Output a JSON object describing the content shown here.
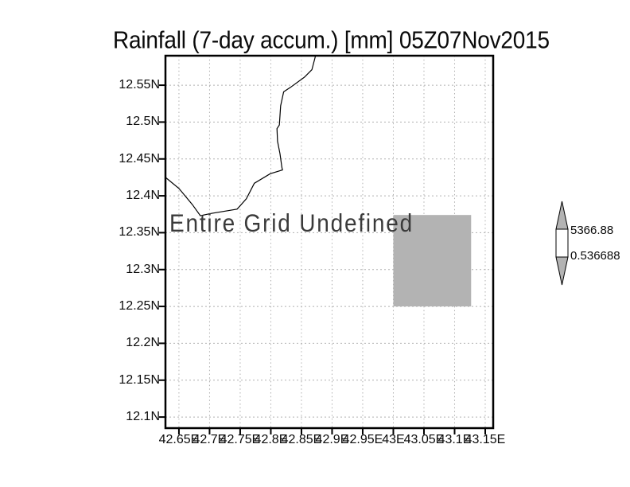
{
  "chart_data": {
    "type": "map",
    "title": "Rainfall (7-day accum.) [mm] 05Z07Nov2015",
    "undefined_label": "Entire Grid Undefined",
    "x_axis": {
      "tick_labels": [
        "42.65E",
        "42.7E",
        "42.75E",
        "42.8E",
        "42.85E",
        "42.9E",
        "42.95E",
        "43E",
        "43.05E",
        "43.1E",
        "43.15E"
      ],
      "tick_values": [
        42.65,
        42.7,
        42.75,
        42.8,
        42.85,
        42.9,
        42.95,
        43.0,
        43.05,
        43.1,
        43.15
      ],
      "range": [
        42.628,
        43.163
      ]
    },
    "y_axis": {
      "tick_labels": [
        "12.55N",
        "12.5N",
        "12.45N",
        "12.4N",
        "12.35N",
        "12.3N",
        "12.25N",
        "12.2N",
        "12.15N",
        "12.1N"
      ],
      "tick_values": [
        12.55,
        12.5,
        12.45,
        12.4,
        12.35,
        12.3,
        12.25,
        12.2,
        12.15,
        12.1
      ],
      "range": [
        12.085,
        12.59
      ]
    },
    "grid": {
      "visible": true,
      "style": "dotted",
      "color": "#b0b0b0"
    },
    "frame_color": "#000000",
    "coastline_color": "#000000",
    "coastline": [
      [
        42.873,
        12.59
      ],
      [
        42.867,
        12.571
      ],
      [
        42.855,
        12.561
      ],
      [
        42.832,
        12.547
      ],
      [
        42.821,
        12.541
      ],
      [
        42.816,
        12.522
      ],
      [
        42.814,
        12.496
      ],
      [
        42.81,
        12.491
      ],
      [
        42.811,
        12.474
      ],
      [
        42.815,
        12.457
      ],
      [
        42.818,
        12.439
      ],
      [
        42.819,
        12.435
      ],
      [
        42.799,
        12.43
      ],
      [
        42.773,
        12.417
      ],
      [
        42.76,
        12.396
      ],
      [
        42.745,
        12.382
      ],
      [
        42.702,
        12.376
      ],
      [
        42.685,
        12.373
      ],
      [
        42.672,
        12.388
      ],
      [
        42.65,
        12.41
      ],
      [
        42.628,
        12.425
      ]
    ],
    "undefined_region": {
      "lon": [
        43.0,
        43.127
      ],
      "lat": [
        12.25,
        12.374
      ],
      "color": "#b3b3b3"
    },
    "colorbar": {
      "max_label": "5366.88",
      "min_label": "0.536688",
      "arrow_color": "#b3b3b3",
      "box_color": "#ffffff",
      "outline_color": "#000000"
    }
  }
}
